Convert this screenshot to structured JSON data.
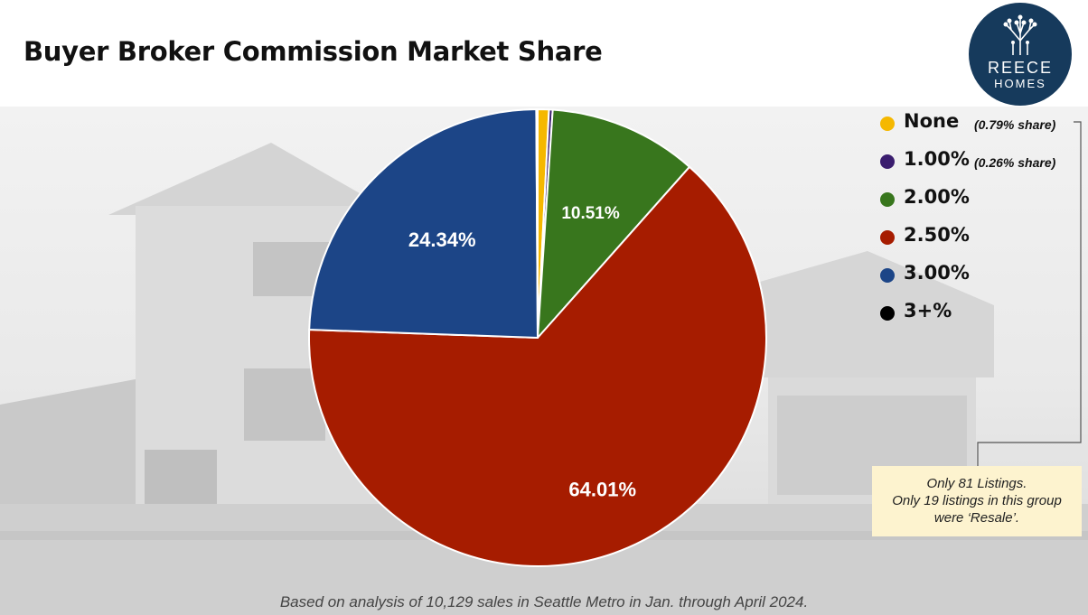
{
  "header": {
    "title": "Buyer Broker Commission Market Share"
  },
  "logo": {
    "line1": "REECE",
    "line2": "HOMES",
    "icon": "tree-icon"
  },
  "chart_data": {
    "type": "pie",
    "title": "Buyer Broker Commission Market Share",
    "slices": [
      {
        "label": "None",
        "value": 0.79,
        "color": "#f5b800",
        "note": "(0.79% share)"
      },
      {
        "label": "1.00%",
        "value": 0.26,
        "color": "#3a1d6e",
        "note": "(0.26% share)"
      },
      {
        "label": "2.00%",
        "value": 10.51,
        "color": "#38761d",
        "data_label": "10.51%"
      },
      {
        "label": "2.50%",
        "value": 64.01,
        "color": "#a61c00",
        "data_label": "64.01%"
      },
      {
        "label": "3.00%",
        "value": 24.34,
        "color": "#1c4587",
        "data_label": "24.34%"
      },
      {
        "label": "3+%",
        "value": 0.1,
        "color": "#000000"
      }
    ],
    "legend_position": "right",
    "start_angle_deg": 0,
    "direction": "clockwise"
  },
  "annotation": {
    "lines": [
      "Only 81 Listings.",
      "Only 19 listings in this group",
      "were ‘Resale’."
    ]
  },
  "footer": {
    "text": "Based on analysis of 10,129 sales in Seattle Metro in Jan. through April 2024."
  }
}
